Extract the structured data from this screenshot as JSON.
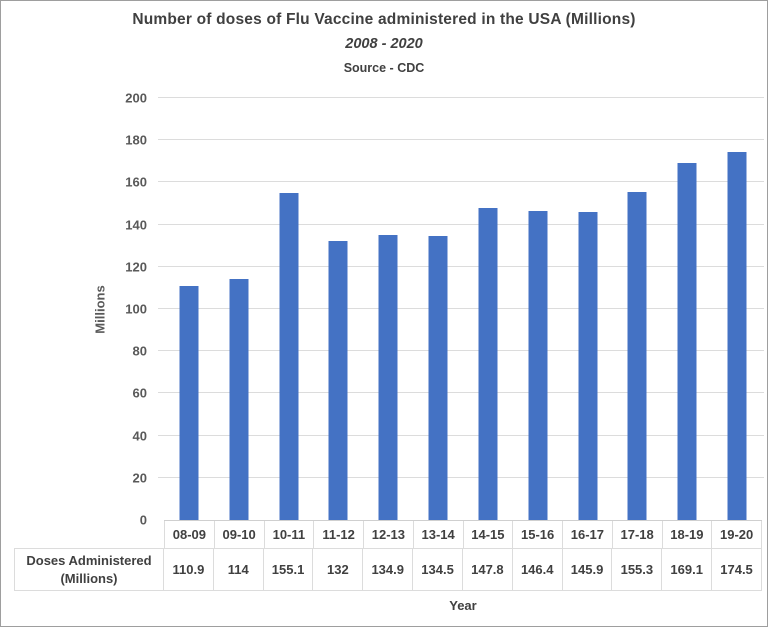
{
  "chart": {
    "title": "Number of doses of Flu Vaccine administered in the USA (Millions)",
    "subtitle": "2008 - 2020",
    "source": "Source - CDC",
    "ylabel": "Millions",
    "xlabel": "Year"
  },
  "chart_data": {
    "type": "bar",
    "title": "Number of doses of Flu Vaccine administered in the USA (Millions)",
    "subtitle": "2008 - 2020",
    "source": "Source - CDC",
    "xlabel": "Year",
    "ylabel": "Millions",
    "categories": [
      "08-09",
      "09-10",
      "10-11",
      "11-12",
      "12-13",
      "13-14",
      "14-15",
      "15-16",
      "16-17",
      "17-18",
      "18-19",
      "19-20"
    ],
    "series": [
      {
        "name": "Doses Administered (Millions)",
        "name_lines": [
          "Doses Administered",
          "(Millions)"
        ],
        "values": [
          110.9,
          114,
          155.1,
          132,
          134.9,
          134.5,
          147.8,
          146.4,
          145.9,
          155.3,
          169.1,
          174.5
        ],
        "value_labels": [
          "110.9",
          "114",
          "155.1",
          "132",
          "134.9",
          "134.5",
          "147.8",
          "146.4",
          "145.9",
          "155.3",
          "169.1",
          "174.5"
        ]
      }
    ],
    "ylim": [
      0,
      200
    ],
    "ytick_step": 20,
    "grid": true,
    "legend_position": "none",
    "data_table_below_chart": true,
    "bar_color": "#4472C4",
    "gridline_color": "#dcdcdc",
    "text_color_axis": "#595959",
    "text_color_table": "#404040"
  }
}
